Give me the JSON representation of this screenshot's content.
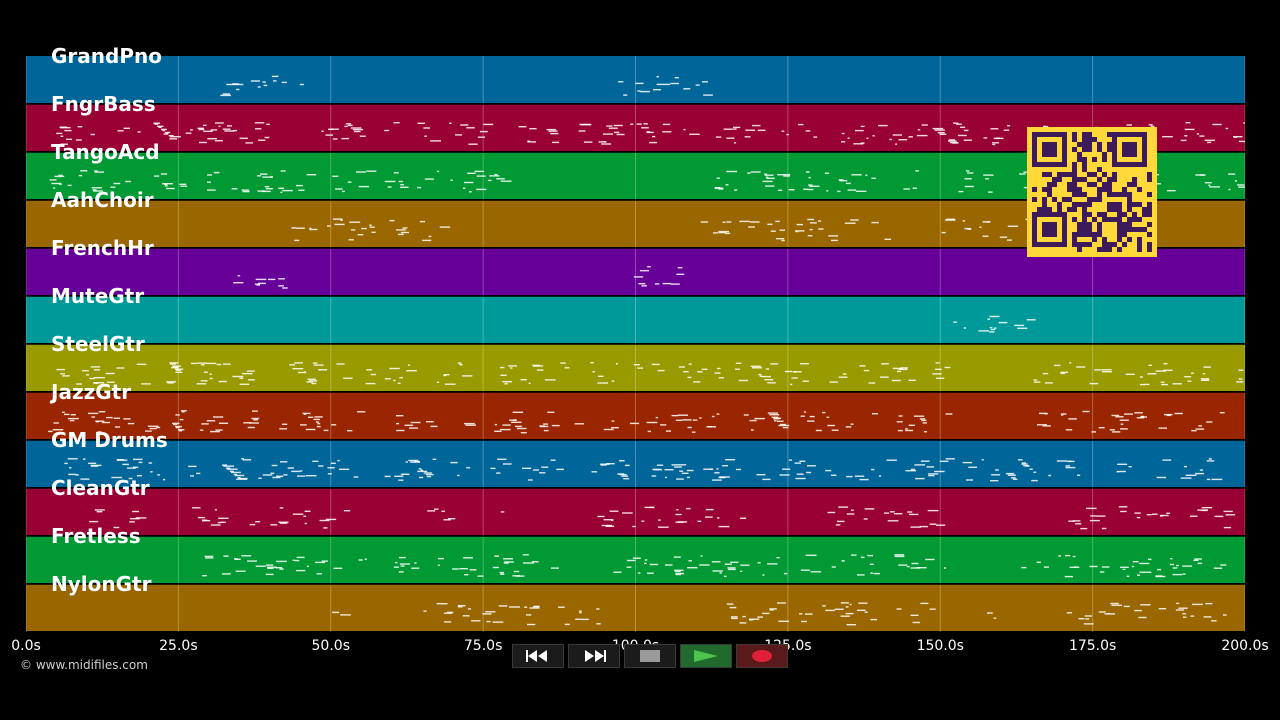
{
  "tracks": [
    {
      "name": "GrandPno",
      "color": "#006699"
    },
    {
      "name": "FngrBass",
      "color": "#990033"
    },
    {
      "name": "TangoAcd",
      "color": "#009933"
    },
    {
      "name": "AahChoir",
      "color": "#996600"
    },
    {
      "name": "FrenchHr",
      "color": "#660099"
    },
    {
      "name": "MuteGtr",
      "color": "#009999"
    },
    {
      "name": "SteelGtr",
      "color": "#999900"
    },
    {
      "name": "JazzGtr",
      "color": "#992600"
    },
    {
      "name": "GM Drums",
      "color": "#006699"
    },
    {
      "name": "CleanGtr",
      "color": "#990033"
    },
    {
      "name": "Fretless",
      "color": "#009933"
    },
    {
      "name": "NylonGtr",
      "color": "#996600"
    }
  ],
  "timeline": {
    "ticks": [
      "0.0s",
      "25.0s",
      "50.0s",
      "75.0s",
      "100.0s",
      "125.0s",
      "150.0s",
      "175.0s",
      "200.0s"
    ],
    "duration_seconds": 200
  },
  "credit": "© www.midifiles.com",
  "transport": {
    "rewind_icon": "rewind-icon",
    "fast_forward_icon": "fast-forward-icon",
    "stop_icon": "stop-icon",
    "play_icon": "play-icon",
    "record_icon": "record-icon"
  },
  "colors": {
    "background": "#000000",
    "qr_yellow": "#ffd83a",
    "qr_dark": "#3d1a5a",
    "play_green": "#4cc34c",
    "record_red": "#e0203a"
  },
  "qr_icon": "qr-code-icon"
}
